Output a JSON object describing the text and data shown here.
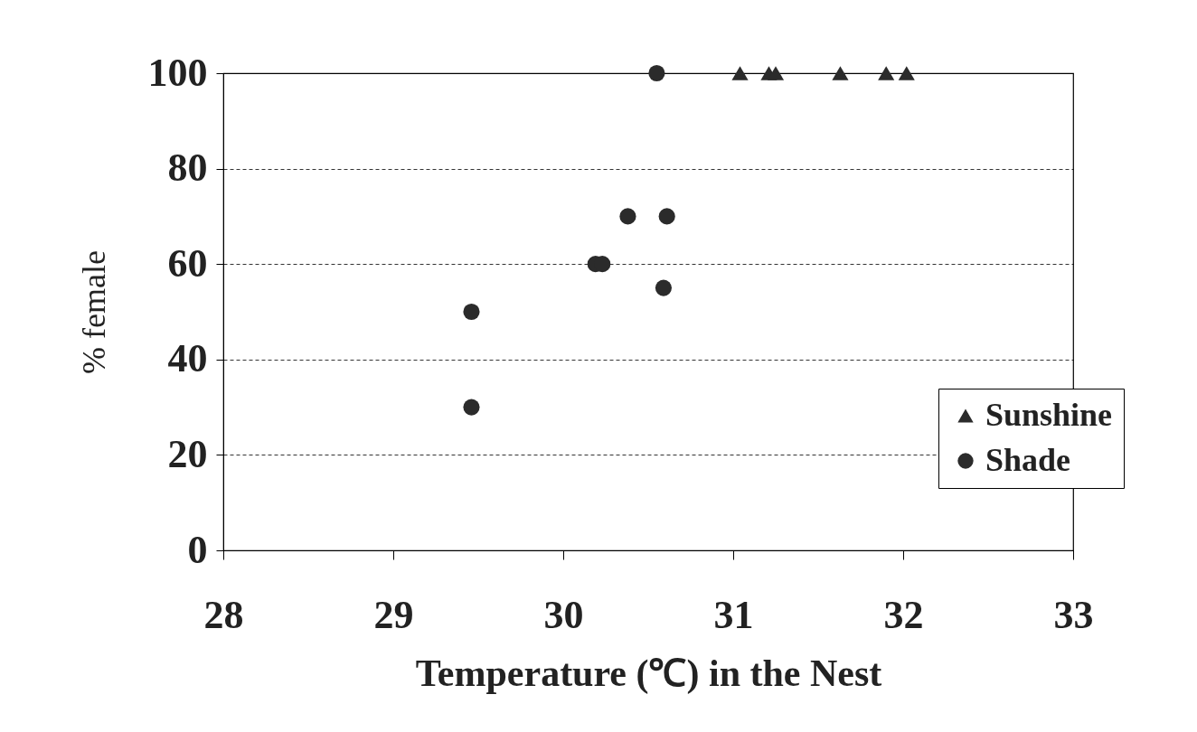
{
  "chart_data": {
    "type": "scatter",
    "xlabel": "Temperature (℃) in the Nest",
    "ylabel": "% female",
    "xlim": [
      28,
      33
    ],
    "xticks": [
      28,
      29,
      30,
      31,
      32,
      33
    ],
    "ylim": [
      0,
      100
    ],
    "yticks": [
      0,
      20,
      40,
      60,
      80,
      100
    ],
    "grid": "y",
    "legend": "bottom right",
    "series": [
      {
        "name": "Sunshine",
        "color": "#2b2b2b",
        "marker": "triangle",
        "x": [
          31.04,
          31.21,
          31.25,
          31.63,
          31.9,
          32.02
        ],
        "values": [
          100,
          100,
          100,
          100,
          100,
          100
        ]
      },
      {
        "name": "Shade",
        "color": "#2b2b2b",
        "marker": "circle",
        "x": [
          30.55,
          29.46,
          29.46,
          30.19,
          30.23,
          30.38,
          30.61,
          30.59
        ],
        "values": [
          100,
          50,
          30,
          60,
          60,
          70,
          70,
          55
        ]
      }
    ]
  }
}
